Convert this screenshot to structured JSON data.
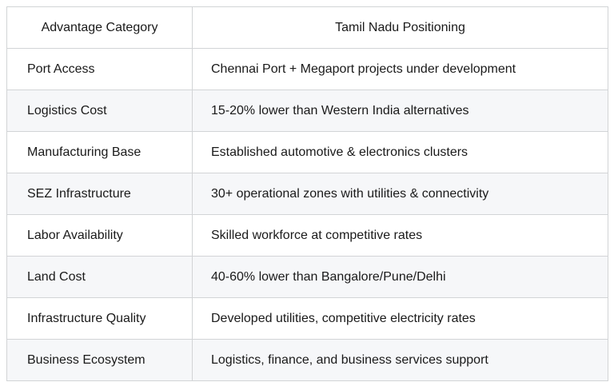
{
  "table": {
    "columns": [
      {
        "label": "Advantage Category"
      },
      {
        "label": "Tamil Nadu Positioning"
      }
    ],
    "rows": [
      {
        "category": "Port Access",
        "positioning": "Chennai Port + Megaport projects under development"
      },
      {
        "category": "Logistics Cost",
        "positioning": "15-20% lower than Western India alternatives"
      },
      {
        "category": "Manufacturing Base",
        "positioning": "Established automotive & electronics clusters"
      },
      {
        "category": "SEZ Infrastructure",
        "positioning": "30+ operational zones with utilities & connectivity"
      },
      {
        "category": "Labor Availability",
        "positioning": "Skilled workforce at competitive rates"
      },
      {
        "category": "Land Cost",
        "positioning": "40-60% lower than Bangalore/Pune/Delhi"
      },
      {
        "category": "Infrastructure Quality",
        "positioning": "Developed utilities, competitive electricity rates"
      },
      {
        "category": "Business Ecosystem",
        "positioning": "Logistics, finance, and business services support"
      }
    ],
    "colors": {
      "background": "#ffffff",
      "stripe": "#f6f7f9",
      "border": "#d2d4d6",
      "text": "#1a1a1a"
    }
  },
  "chart_data": {
    "type": "table",
    "title": "",
    "columns": [
      "Advantage Category",
      "Tamil Nadu Positioning"
    ],
    "rows": [
      [
        "Port Access",
        "Chennai Port + Megaport projects under development"
      ],
      [
        "Logistics Cost",
        "15-20% lower than Western India alternatives"
      ],
      [
        "Manufacturing Base",
        "Established automotive & electronics clusters"
      ],
      [
        "SEZ Infrastructure",
        "30+ operational zones with utilities & connectivity"
      ],
      [
        "Labor Availability",
        "Skilled workforce at competitive rates"
      ],
      [
        "Land Cost",
        "40-60% lower than Bangalore/Pune/Delhi"
      ],
      [
        "Infrastructure Quality",
        "Developed utilities, competitive electricity rates"
      ],
      [
        "Business Ecosystem",
        "Logistics, finance, and business services support"
      ]
    ]
  }
}
